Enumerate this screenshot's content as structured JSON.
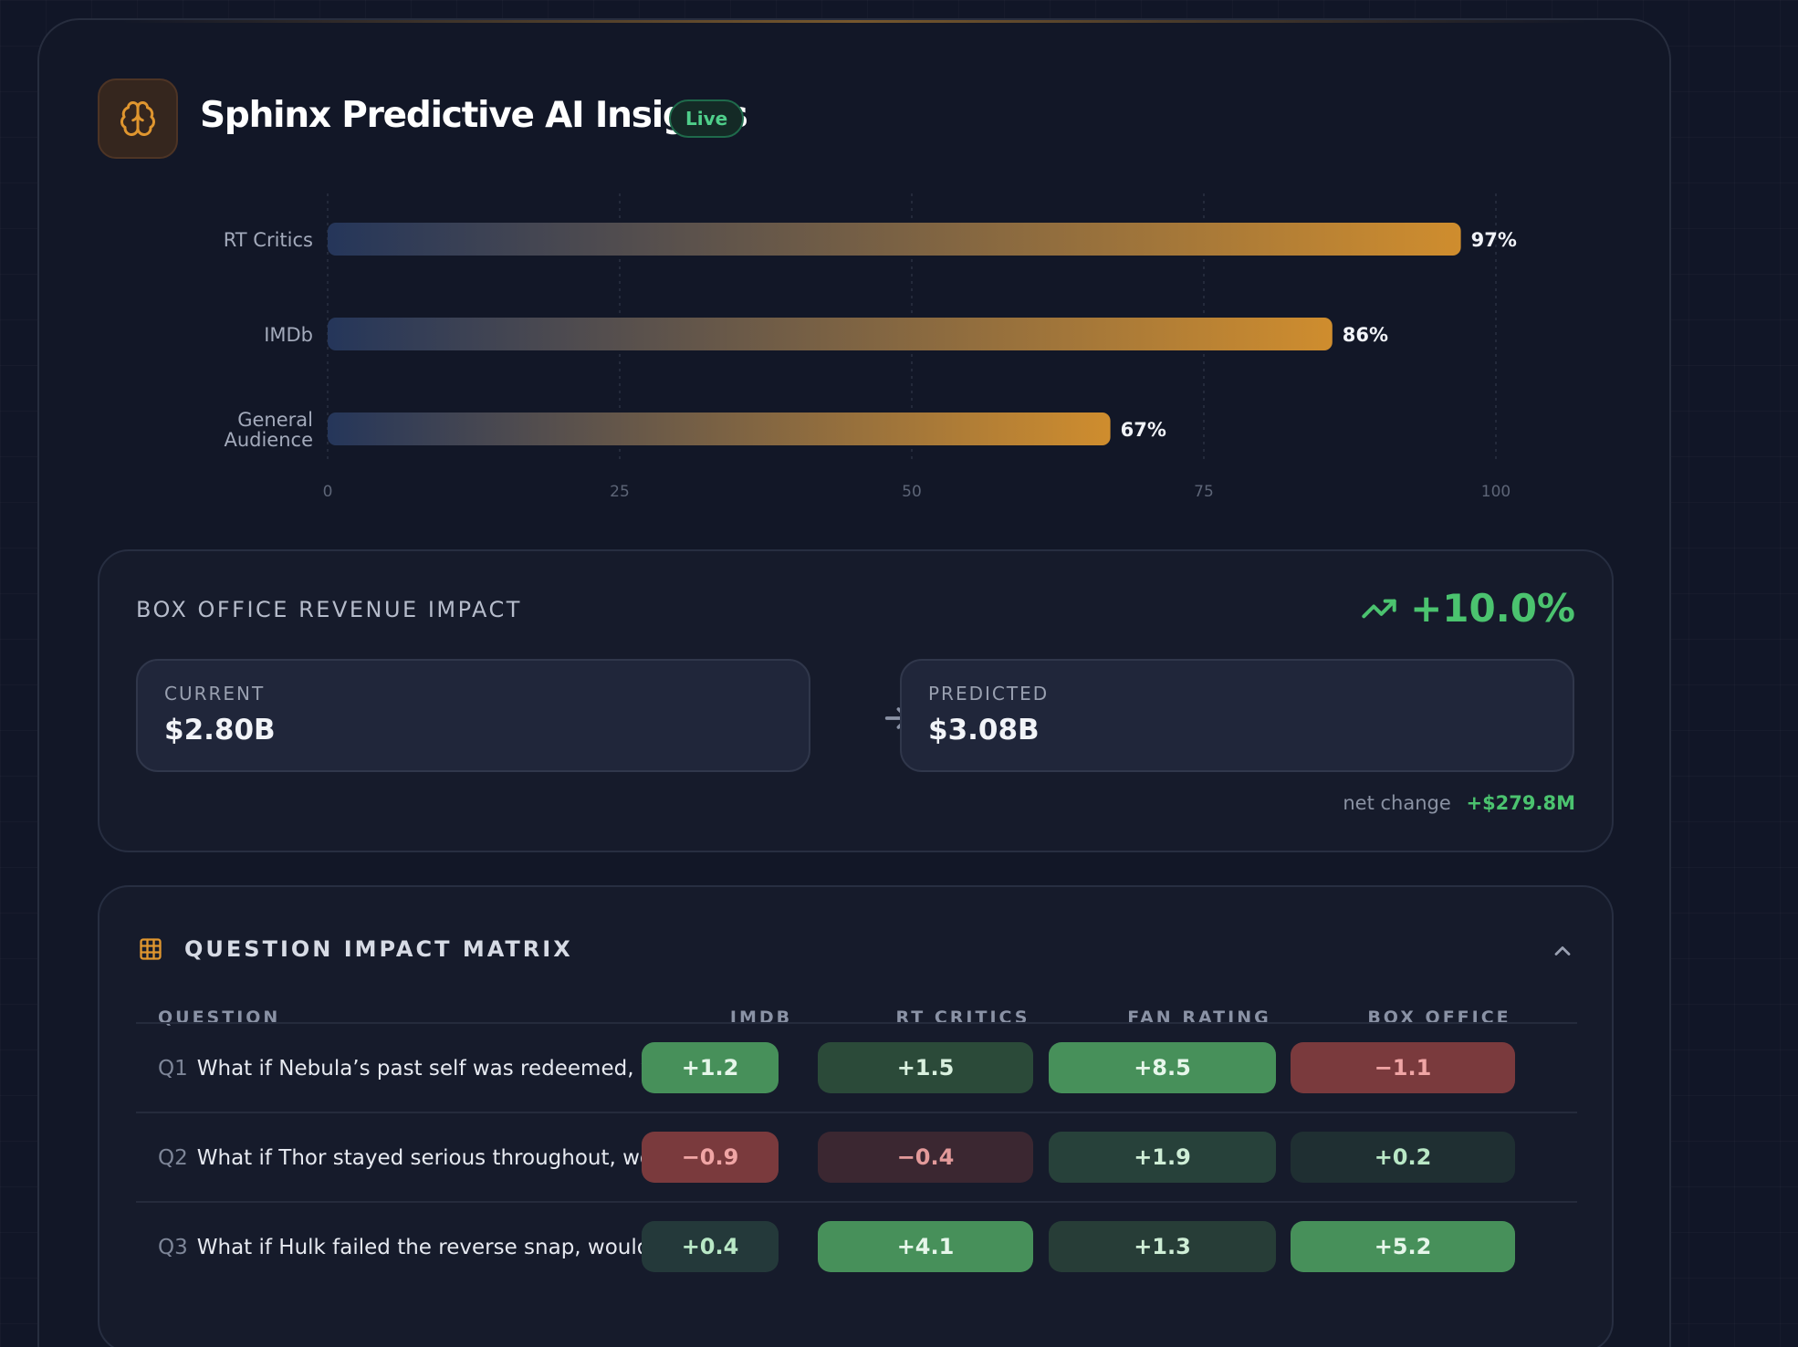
{
  "header": {
    "title": "Sphinx Predictive AI Insights",
    "badge": "Live",
    "icon": "brain-icon"
  },
  "chart_data": {
    "type": "bar",
    "orientation": "horizontal",
    "categories": [
      "RT Critics",
      "IMDb",
      "General Audience"
    ],
    "values": [
      97,
      86,
      67
    ],
    "value_labels": [
      "97%",
      "86%",
      "67%"
    ],
    "xticks": [
      0,
      25,
      50,
      75,
      100
    ],
    "xlim": [
      0,
      100
    ],
    "grid": true,
    "colors": {
      "bar_start": "#25365a",
      "bar_end": "#cf8d2e"
    }
  },
  "revenue": {
    "title": "BOX OFFICE REVENUE IMPACT",
    "change_pct": "+10.0%",
    "current_label": "CURRENT",
    "current_value": "$2.80B",
    "predicted_label": "PREDICTED",
    "predicted_value": "$3.08B",
    "net_label": "net change",
    "net_value": "+$279.8M"
  },
  "matrix": {
    "title": "QUESTION IMPACT MATRIX",
    "columns": [
      "QUESTION",
      "IMDB",
      "RT CRITICS",
      "FAN RATING",
      "BOX OFFICE"
    ],
    "rows": [
      {
        "num": "Q1",
        "text": "What if Nebula’s past self was redeemed, wou...",
        "cells": [
          "+1.2",
          "+1.5",
          "+8.5",
          "−1.1"
        ]
      },
      {
        "num": "Q2",
        "text": "What if Thor stayed serious throughout, woul...",
        "cells": [
          "−0.9",
          "−0.4",
          "+1.9",
          "+0.2"
        ]
      },
      {
        "num": "Q3",
        "text": "What if Hulk failed the reverse snap, would th...",
        "cells": [
          "+0.4",
          "+4.1",
          "+1.3",
          "+5.2"
        ]
      }
    ]
  },
  "colors": {
    "positive": "#4bc36f",
    "negative": "#e07a7a",
    "accent": "#e0962f"
  }
}
